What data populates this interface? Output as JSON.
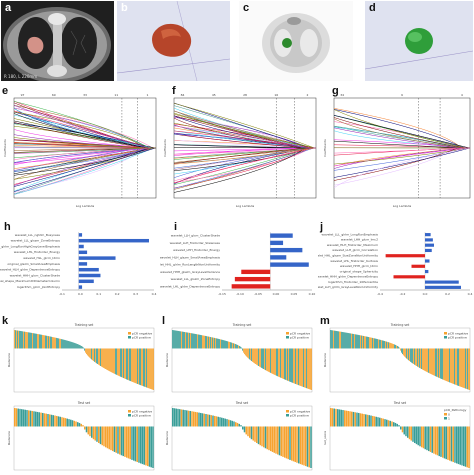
{
  "panel_labels": [
    "a",
    "b",
    "c",
    "d",
    "e",
    "f",
    "g",
    "h",
    "i",
    "j",
    "k",
    "l",
    "m"
  ],
  "ct_overlay_text": "R 180, L 220mm",
  "lasso": {
    "xlabel": "Log Lambda",
    "ylabel_e": "Coefficients",
    "ylabel_f": "Coefficients",
    "ylabel_g": "Coefficients",
    "top_e": [
      "97",
      "69",
      "33",
      "11",
      "1"
    ],
    "top_f": [
      "84",
      "45",
      "28",
      "16",
      "2"
    ],
    "top_g": [
      "34",
      "9",
      "4"
    ]
  },
  "bars": {
    "h": {
      "labels": [
        "wavelet_LLL_ngtdm_Busyness",
        "wavelet_LLL_glszm_ZoneEntropy",
        "wavelet_LLL_glrlm_LongRunHighGrayLevelEmphasis",
        "wavelet_LHL_firstorder_Energy",
        "wavelet_HLL_glcm_Idmn",
        "original_glszm_SmallAreaEmphasis",
        "wavelet_HLH_gldm_DependenceEntropy",
        "wavelet_HHH_glcm_ClusterShade",
        "original_shape_Maximum2DDiameterColumn",
        "logarithm_glcm_JointEntropy"
      ],
      "values": [
        0.02,
        0.42,
        0.03,
        0.05,
        0.22,
        0.05,
        0.12,
        0.13,
        0.09,
        0.02
      ],
      "axis": [
        "-0.1",
        "0.0",
        "0.1",
        "0.2",
        "0.3",
        "0.4"
      ]
    },
    "i": {
      "labels": [
        "wavelet_LLH_glcm_ClusterShade",
        "wavelet_LLH_firstorder_Skewness",
        "wavelet_LHH_firstorder_Energy",
        "wavelet_HLH_glszm_SmallAreaEmphasis",
        "wavelet_HHL_glrlm_RunLengthNonUniformity",
        "wavelet_HHH_glszm_GrayLevelVariance",
        "wavelet_LLL_glszm_ZoneEntropy",
        "wavelet_LHL_gldm_DependenceEntropy"
      ],
      "values": [
        0.07,
        0.04,
        0.1,
        0.05,
        0.12,
        -0.09,
        -0.11,
        -0.12
      ],
      "axis": [
        "-0.15",
        "-0.10",
        "-0.05",
        "0.00",
        "0.05",
        "0.10"
      ]
    },
    "j": {
      "labels": [
        "wavelet_LLL_glrlm_LongRunEmphasis",
        "wavelet_LHH_glcm_Imc2",
        "wavelet_HLH_firstorder_Maximum",
        "wavelet_LLH_glcm_Correlation",
        "wavelet_HHL_glszm_SizeZoneNonUniformity",
        "wavelet_LHL_firstorder_Kurtosis",
        "wavelet_HHH_glcm_Idmn",
        "original_shape_Sphericity",
        "wavelet_HHH_gldm_DependenceEntropy",
        "logarithm_firstorder_10Percentile",
        "wavelet_LLH_glrlm_GrayLevelNonUniformity"
      ],
      "values": [
        0.05,
        0.07,
        0.08,
        0.06,
        -0.35,
        0.04,
        -0.12,
        0.03,
        -0.28,
        0.3,
        0.32
      ],
      "axis": [
        "-0.4",
        "-0.2",
        "0.0",
        "0.2",
        "0.4"
      ]
    }
  },
  "waterfall": {
    "titles": [
      "Training set",
      "Training set",
      "Training set",
      "Test set",
      "Test set",
      "Test set"
    ],
    "ylabels": [
      "Radscore",
      "Radscore",
      "Radscore",
      "Radscore",
      "Radscore",
      "rad_score"
    ],
    "legend_items": [
      "pCR negative",
      "pCR positive"
    ],
    "legend_m_bottom": [
      "pCR_Pathology",
      "0",
      "1"
    ]
  },
  "colors": {
    "blue": "#3565c8",
    "red": "#e0231f",
    "orange": "#f6a330",
    "teal": "#3a9e98",
    "ct_dark": "#2c2c2c",
    "tumor": "#c5562f",
    "pet_green": "#2d8a2d",
    "bg_3d": "#dfe2f0"
  }
}
